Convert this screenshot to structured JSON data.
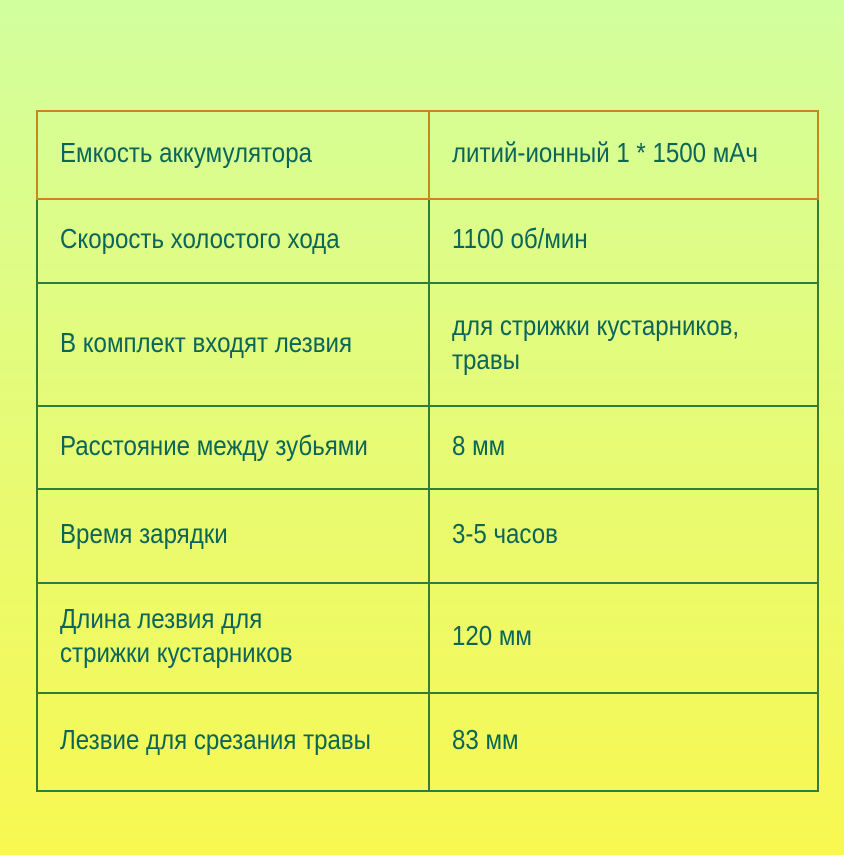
{
  "specs": [
    {
      "label": "Емкость аккумулятора",
      "value": "литий-ионный 1 * 1500 мАч"
    },
    {
      "label": "Скорость холостого хода",
      "value": "1100 об/мин"
    },
    {
      "label": "В комплект входят лезвия",
      "value": "для стрижки кустарников,\nтравы"
    },
    {
      "label": "Расстояние между зубьями",
      "value": "8 мм"
    },
    {
      "label": "Время зарядки",
      "value": "3-5 часов"
    },
    {
      "label": "Длина лезвия для\nстрижки кустарников",
      "value": "120 мм"
    },
    {
      "label": "Лезвие для срезания травы",
      "value": "83 мм"
    }
  ],
  "colors": {
    "text": "#0b6659",
    "border_top": "#c8861c",
    "border": "#2e7d3a"
  }
}
